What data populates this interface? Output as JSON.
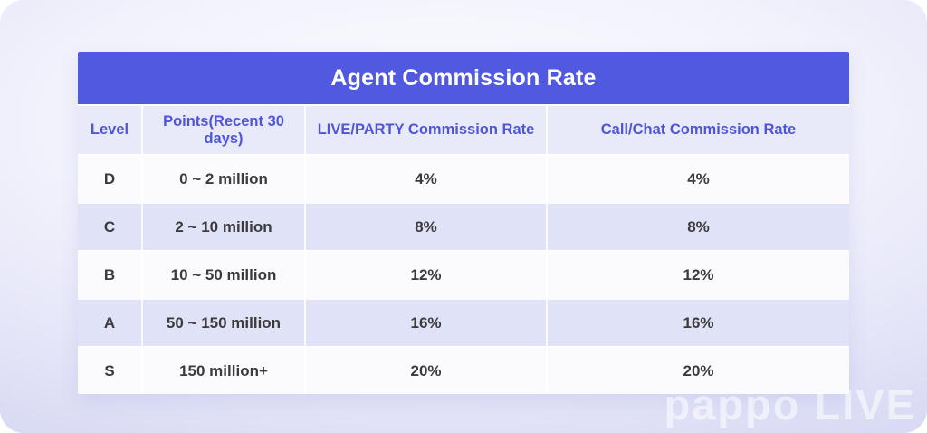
{
  "watermark": "pappo LIVE",
  "colors": {
    "title_bar_bg": "#5159e0",
    "title_text": "#ffffff",
    "column_header_bg": "#e8e9f9",
    "column_header_text": "#4f55d8",
    "row_light_bg": "#fbfbfe",
    "row_lavender_bg": "#e0e2f7",
    "cell_text": "#3b3b3b"
  },
  "chart_data": {
    "type": "table",
    "title": "Agent Commission Rate",
    "columns": [
      "Level",
      "Points(Recent 30 days)",
      "LIVE/PARTY Commission Rate",
      "Call/Chat Commission Rate"
    ],
    "rows": [
      [
        "D",
        "0 ~ 2 million",
        "4%",
        "4%"
      ],
      [
        "C",
        "2 ~ 10 million",
        "8%",
        "8%"
      ],
      [
        "B",
        "10 ~ 50 million",
        "12%",
        "12%"
      ],
      [
        "A",
        "50 ~ 150 million",
        "16%",
        "16%"
      ],
      [
        "S",
        "150 million+",
        "20%",
        "20%"
      ]
    ],
    "layout": {
      "grid": "row-striped",
      "stripe_pattern": [
        "light",
        "lavender",
        "light",
        "lavender",
        "light"
      ],
      "title_position": "top-banner"
    }
  }
}
